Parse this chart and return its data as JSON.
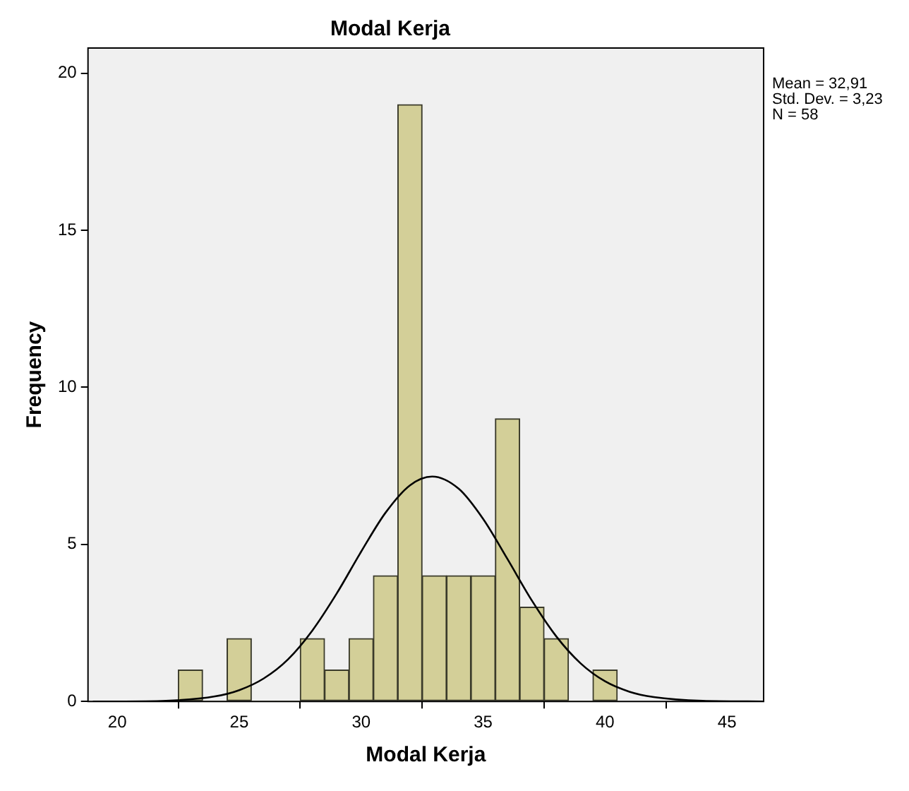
{
  "chart_data": {
    "type": "histogram",
    "title": "Modal Kerja",
    "xlabel": "Modal Kerja",
    "ylabel": "Frequency",
    "bins": [
      22.5,
      23.5,
      24.5,
      25.5,
      26.5,
      27.5,
      28.5,
      29.5,
      30.5,
      31.5,
      32.5,
      33.5,
      34.5,
      35.5,
      36.5,
      37.5,
      38.5,
      39.5,
      40.5
    ],
    "values": [
      1,
      0,
      2,
      0,
      0,
      2,
      1,
      2,
      4,
      19,
      4,
      4,
      4,
      9,
      3,
      2,
      0,
      1
    ],
    "color": "#d3cf98",
    "series": [
      {
        "type": "line",
        "color": "#000000",
        "x": [
          19,
          20,
          22,
          24,
          25,
          26,
          27,
          28,
          29,
          30,
          31,
          32,
          32.91,
          34,
          35,
          36,
          37,
          38,
          39,
          40,
          41,
          42,
          44,
          46.5
        ],
        "values": [
          0,
          0,
          0.02,
          0.16,
          0.36,
          0.73,
          1.34,
          2.26,
          3.44,
          4.77,
          6.01,
          6.88,
          7.16,
          6.77,
          5.81,
          4.53,
          3.21,
          2.07,
          1.21,
          0.64,
          0.31,
          0.14,
          0.02,
          0
        ]
      }
    ],
    "xlim": [
      18.8,
      46.5
    ],
    "xticks": [
      20,
      25,
      30,
      35,
      40,
      45
    ],
    "ylim": [
      0,
      20.8
    ],
    "yticks": [
      0,
      5,
      10,
      15,
      20
    ],
    "grid": false,
    "legend": false,
    "marker": "none",
    "line_style": "solid",
    "annotations": [
      "Mean = 32,91",
      "Std. Dev. = 3,23",
      "N = 58"
    ]
  }
}
